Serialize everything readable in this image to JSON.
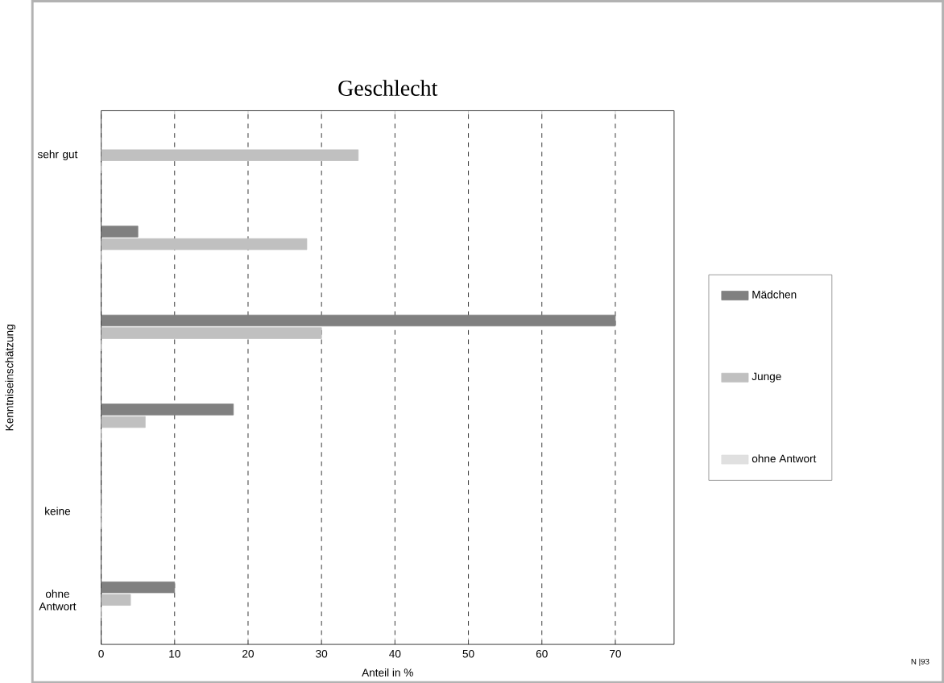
{
  "chart_data": {
    "type": "bar",
    "orientation": "horizontal",
    "title": "Geschlecht",
    "xlabel": "Anteil in %",
    "ylabel": "Kenntniseinschätzung",
    "categories": [
      "sehr gut",
      null,
      null,
      null,
      "keine",
      "ohne Antwort"
    ],
    "series": [
      {
        "name": "Mädchen",
        "color": "#808080",
        "values": [
          0,
          5,
          70,
          18,
          0,
          10
        ]
      },
      {
        "name": "Junge",
        "color": "#c0c0c0",
        "values": [
          35,
          28,
          30,
          6,
          0,
          4
        ]
      },
      {
        "name": "ohne Antwort",
        "color": "#e0e0e0",
        "values": [
          0,
          0,
          0,
          0,
          0,
          0
        ]
      }
    ],
    "xlim": [
      0,
      78
    ],
    "xticks": [
      0,
      10,
      20,
      30,
      40,
      50,
      60,
      70
    ],
    "grid": "x",
    "legend": "right",
    "annotations": [
      "N |93"
    ]
  }
}
